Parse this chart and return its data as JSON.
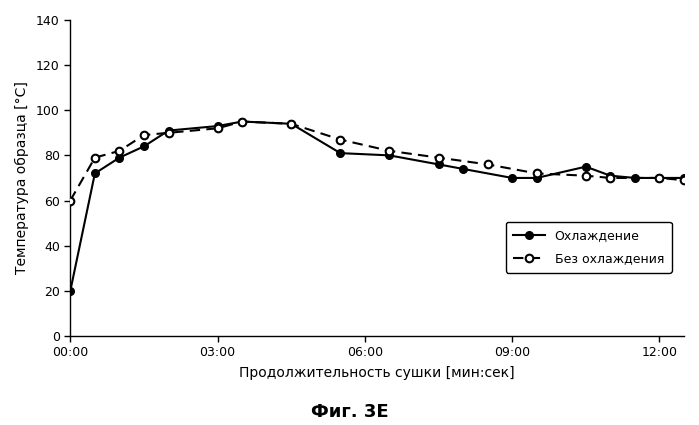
{
  "solid_line": {
    "label": "Охлаждение",
    "x": [
      0,
      30,
      60,
      90,
      120,
      180,
      210,
      270,
      330,
      390,
      450,
      480,
      540,
      570,
      630,
      660,
      690,
      720,
      750
    ],
    "y": [
      20,
      72,
      79,
      84,
      91,
      93,
      95,
      94,
      81,
      80,
      76,
      74,
      70,
      70,
      75,
      71,
      70,
      70,
      70
    ]
  },
  "dashed_line": {
    "label": "Без охлаждения",
    "x": [
      0,
      30,
      60,
      90,
      120,
      180,
      210,
      270,
      330,
      390,
      450,
      510,
      570,
      630,
      660,
      720,
      750
    ],
    "y": [
      60,
      79,
      82,
      89,
      90,
      92,
      95,
      94,
      87,
      82,
      79,
      76,
      72,
      71,
      70,
      70,
      69
    ]
  },
  "xlim": [
    0,
    750
  ],
  "ylim": [
    0,
    140
  ],
  "yticks": [
    0,
    20,
    40,
    60,
    80,
    100,
    120,
    140
  ],
  "xticks": [
    0,
    180,
    360,
    540,
    720
  ],
  "xtick_labels": [
    "00:00",
    "03:00",
    "06:00",
    "09:00",
    "12:00"
  ],
  "xlabel": "Продолжительность сушки [мин:сек]",
  "ylabel": "Температура образца [°С]",
  "title": "Фиг. 3Е",
  "background_color": "#ffffff",
  "line_color": "#000000",
  "tick_fontsize": 9,
  "label_fontsize": 10,
  "legend_fontsize": 9,
  "title_fontsize": 13
}
